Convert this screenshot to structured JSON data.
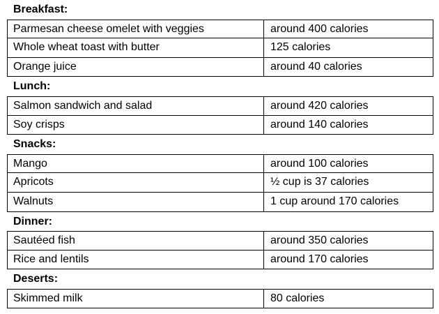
{
  "sections": [
    {
      "title": "Breakfast:",
      "rows": [
        [
          "Parmesan cheese omelet with veggies",
          "around 400 calories"
        ],
        [
          "Whole wheat toast with butter",
          "125 calories"
        ],
        [
          "Orange juice",
          "around 40 calories"
        ]
      ]
    },
    {
      "title": "Lunch:",
      "rows": [
        [
          "Salmon sandwich and salad",
          "around 420 calories"
        ],
        [
          "Soy crisps",
          "around 140 calories"
        ]
      ]
    },
    {
      "title": "Snacks:",
      "rows": [
        [
          "Mango",
          "around 100 calories"
        ],
        [
          "Apricots",
          "½ cup is 37 calories"
        ],
        [
          "Walnuts",
          "1 cup around 170 calories"
        ]
      ]
    },
    {
      "title": "Dinner:",
      "rows": [
        [
          "Sautéed fish",
          "around 350 calories"
        ],
        [
          "Rice and lentils",
          "around 170 calories"
        ]
      ]
    },
    {
      "title": "Deserts:",
      "rows": [
        [
          "Skimmed milk",
          "80 calories"
        ]
      ]
    }
  ]
}
